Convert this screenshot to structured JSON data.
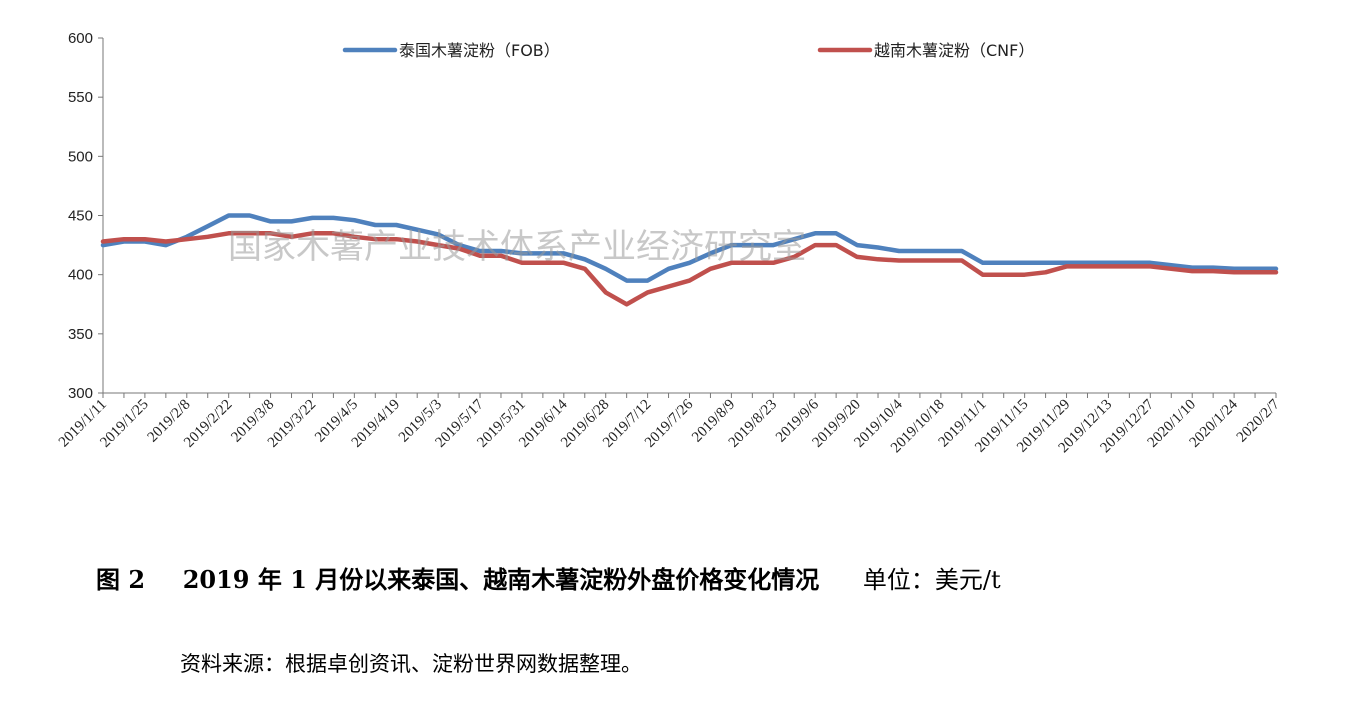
{
  "chart_data": {
    "type": "line",
    "title": "",
    "xlabel": "",
    "ylabel": "",
    "ylim": [
      300,
      600
    ],
    "yticks": [
      300,
      350,
      400,
      450,
      500,
      550,
      600
    ],
    "grid": false,
    "legend_position": "top",
    "x_tick_labels": [
      "2019/1/11",
      "2019/1/25",
      "2019/2/8",
      "2019/2/22",
      "2019/3/8",
      "2019/3/22",
      "2019/4/5",
      "2019/4/19",
      "2019/5/3",
      "2019/5/17",
      "2019/5/31",
      "2019/6/14",
      "2019/6/28",
      "2019/7/12",
      "2019/7/26",
      "2019/8/9",
      "2019/8/23",
      "2019/9/6",
      "2019/9/20",
      "2019/10/4",
      "2019/10/18",
      "2019/11/1",
      "2019/11/15",
      "2019/11/29",
      "2019/12/13",
      "2019/12/27",
      "2020/1/10",
      "2020/1/24",
      "2020/2/7"
    ],
    "x": [
      "2019/1/11",
      "2019/1/18",
      "2019/1/25",
      "2019/2/1",
      "2019/2/8",
      "2019/2/15",
      "2019/2/22",
      "2019/3/1",
      "2019/3/8",
      "2019/3/15",
      "2019/3/22",
      "2019/3/29",
      "2019/4/5",
      "2019/4/12",
      "2019/4/19",
      "2019/4/26",
      "2019/5/3",
      "2019/5/10",
      "2019/5/17",
      "2019/5/24",
      "2019/5/31",
      "2019/6/7",
      "2019/6/14",
      "2019/6/21",
      "2019/6/28",
      "2019/7/5",
      "2019/7/12",
      "2019/7/19",
      "2019/7/26",
      "2019/8/2",
      "2019/8/9",
      "2019/8/16",
      "2019/8/23",
      "2019/8/30",
      "2019/9/6",
      "2019/9/13",
      "2019/9/20",
      "2019/9/27",
      "2019/10/4",
      "2019/10/11",
      "2019/10/18",
      "2019/10/25",
      "2019/11/1",
      "2019/11/8",
      "2019/11/15",
      "2019/11/22",
      "2019/11/29",
      "2019/12/6",
      "2019/12/13",
      "2019/12/20",
      "2019/12/27",
      "2020/1/3",
      "2020/1/10",
      "2020/1/17",
      "2020/1/24",
      "2020/1/31",
      "2020/2/7"
    ],
    "series": [
      {
        "name": "泰国木薯淀粉（FOB）",
        "color": "#4f81bd",
        "values": [
          425,
          428,
          428,
          425,
          432,
          441,
          450,
          450,
          445,
          445,
          448,
          448,
          446,
          442,
          442,
          438,
          434,
          425,
          420,
          420,
          418,
          418,
          418,
          413,
          405,
          395,
          395,
          405,
          410,
          418,
          425,
          425,
          425,
          430,
          435,
          435,
          425,
          423,
          420,
          420,
          420,
          420,
          410,
          410,
          410,
          410,
          410,
          410,
          410,
          410,
          410,
          408,
          406,
          406,
          405,
          405,
          405
        ]
      },
      {
        "name": "越南木薯淀粉（CNF）",
        "color": "#c0504d",
        "values": [
          428,
          430,
          430,
          428,
          430,
          432,
          435,
          435,
          435,
          432,
          435,
          435,
          432,
          430,
          430,
          428,
          425,
          422,
          416,
          416,
          410,
          410,
          410,
          405,
          385,
          375,
          385,
          390,
          395,
          405,
          410,
          410,
          410,
          415,
          425,
          425,
          415,
          413,
          412,
          412,
          412,
          412,
          400,
          400,
          400,
          402,
          407,
          407,
          407,
          407,
          407,
          405,
          403,
          403,
          402,
          402,
          402
        ]
      }
    ],
    "watermark": "国家木薯产业技术体系产业经济研究室"
  },
  "caption": {
    "figure_no": "图 2",
    "title": "2019 年 1 月份以来泰国、越南木薯淀粉外盘价格变化情况",
    "unit": "单位：美元/t"
  },
  "source": "资料来源：根据卓创资讯、淀粉世界网数据整理。"
}
